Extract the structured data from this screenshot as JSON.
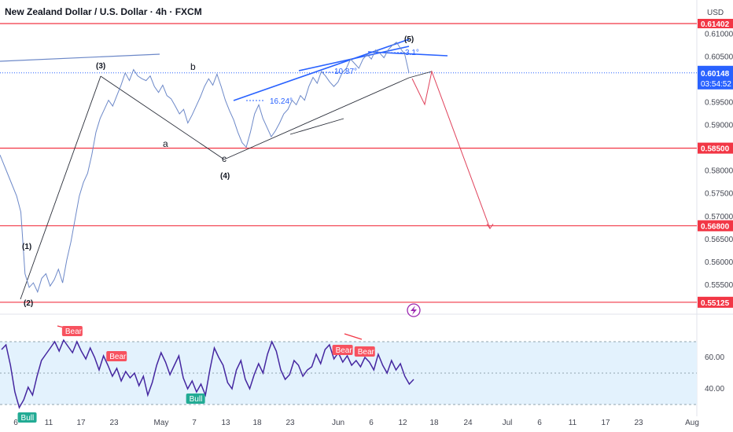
{
  "header": {
    "title": "New Zealand Dollar / U.S. Dollar · 4h · FXCM",
    "currency": "USD"
  },
  "colors": {
    "price": "#6c88c8",
    "trend_blue": "#2962ff",
    "trend_black": "#2a2e39",
    "level_red": "#f23645",
    "projection_red": "#e0425b",
    "rsi_band": "#e3f2fd",
    "rsi_line": "#4527a0",
    "bear_badge": "#f7525f",
    "bull_badge": "#22ab94",
    "current_price_tag": "#2962ff"
  },
  "chart_data": [
    {
      "type": "line",
      "title": "",
      "series": [
        {
          "values": [
            [
              0,
              0.5835
            ],
            [
              2,
              0.579
            ],
            [
              4,
              0.5745
            ],
            [
              5,
              0.571
            ],
            [
              6,
              0.5575
            ],
            [
              7,
              0.5545
            ],
            [
              8,
              0.5555
            ],
            [
              9,
              0.5535
            ],
            [
              10,
              0.5565
            ],
            [
              11,
              0.5575
            ],
            [
              12,
              0.5548
            ],
            [
              13,
              0.5562
            ],
            [
              14,
              0.5585
            ],
            [
              15,
              0.5555
            ],
            [
              16,
              0.5605
            ],
            [
              17,
              0.5645
            ],
            [
              18,
              0.5695
            ],
            [
              19,
              0.5745
            ],
            [
              20,
              0.5775
            ],
            [
              21,
              0.5795
            ],
            [
              22,
              0.5835
            ],
            [
              23,
              0.5885
            ],
            [
              24,
              0.5915
            ],
            [
              25,
              0.5935
            ],
            [
              26,
              0.5955
            ],
            [
              27,
              0.5942
            ],
            [
              28,
              0.5965
            ],
            [
              29,
              0.5988
            ],
            [
              30,
              0.6015
            ],
            [
              31,
              0.5998
            ],
            [
              32,
              0.6022
            ],
            [
              33,
              0.6008
            ],
            [
              34,
              0.6002
            ],
            [
              35,
              0.5998
            ],
            [
              36,
              0.6008
            ],
            [
              37,
              0.5985
            ],
            [
              38,
              0.5972
            ],
            [
              39,
              0.5988
            ],
            [
              40,
              0.5965
            ],
            [
              41,
              0.5958
            ],
            [
              42,
              0.5942
            ],
            [
              43,
              0.5925
            ],
            [
              44,
              0.5935
            ],
            [
              45,
              0.5905
            ],
            [
              46,
              0.5922
            ],
            [
              47,
              0.5942
            ],
            [
              48,
              0.5962
            ],
            [
              49,
              0.5985
            ],
            [
              50,
              0.6002
            ],
            [
              51,
              0.5988
            ],
            [
              52,
              0.6012
            ],
            [
              53,
              0.5985
            ],
            [
              54,
              0.5955
            ],
            [
              55,
              0.5932
            ],
            [
              56,
              0.5912
            ],
            [
              57,
              0.5885
            ],
            [
              58,
              0.5862
            ],
            [
              59,
              0.5852
            ],
            [
              60,
              0.5885
            ],
            [
              61,
              0.5925
            ],
            [
              62,
              0.5945
            ],
            [
              63,
              0.5915
            ],
            [
              64,
              0.5895
            ],
            [
              65,
              0.5875
            ],
            [
              66,
              0.5888
            ],
            [
              67,
              0.5905
            ],
            [
              68,
              0.5925
            ],
            [
              69,
              0.5935
            ],
            [
              70,
              0.5955
            ],
            [
              71,
              0.5945
            ],
            [
              72,
              0.5965
            ],
            [
              73,
              0.5955
            ],
            [
              74,
              0.5985
            ],
            [
              75,
              0.6005
            ],
            [
              76,
              0.5992
            ],
            [
              77,
              0.6018
            ],
            [
              78,
              0.6008
            ],
            [
              79,
              0.5995
            ],
            [
              80,
              0.5985
            ],
            [
              81,
              0.5995
            ],
            [
              82,
              0.6015
            ],
            [
              83,
              0.6025
            ],
            [
              84,
              0.6045
            ],
            [
              85,
              0.6035
            ],
            [
              86,
              0.6025
            ],
            [
              87,
              0.6045
            ],
            [
              88,
              0.6055
            ],
            [
              89,
              0.6045
            ],
            [
              90,
              0.6065
            ],
            [
              91,
              0.6058
            ],
            [
              92,
              0.6048
            ],
            [
              93,
              0.6065
            ],
            [
              94,
              0.6075
            ],
            [
              95,
              0.6082
            ],
            [
              96,
              0.6068
            ],
            [
              97,
              0.6055
            ],
            [
              98,
              0.6015
            ]
          ]
        }
      ],
      "xlabel": "",
      "ylabel": "",
      "xticks": [
        "6",
        "11",
        "17",
        "23",
        "May",
        "7",
        "13",
        "18",
        "23",
        "Jun",
        "6",
        "12",
        "18",
        "24",
        "Jul",
        "6",
        "11",
        "17",
        "23",
        "Aug"
      ],
      "yticks": [
        "0.61000",
        "0.60500",
        "0.60000",
        "0.59500",
        "0.59000",
        "0.58500",
        "0.58000",
        "0.57500",
        "0.57000",
        "0.56500",
        "0.56000",
        "0.55500"
      ],
      "ylim": [
        0.5495,
        0.614
      ],
      "levels": [
        {
          "label": "0.58500",
          "value": 0.585
        },
        {
          "label": "0.56800",
          "value": 0.568
        },
        {
          "label": "0.55125",
          "value": 0.55125
        }
      ],
      "current_price": {
        "label": "0.60148",
        "countdown": "03:54:52",
        "value": 0.60148
      },
      "top_level_label": "0.61402",
      "wave_labels": [
        "(1)",
        "(2)",
        "(3)",
        "a",
        "b",
        "c",
        "(4)",
        "(5)"
      ],
      "annotations": [
        "16.24°",
        "10.87°",
        "3.1°"
      ]
    },
    {
      "type": "line",
      "title": "",
      "yticks": [
        "60.00",
        "40.00"
      ],
      "ylim": [
        25,
        85
      ],
      "band": [
        30,
        70
      ],
      "midline": 50,
      "series": [
        {
          "values": [
            [
              0,
              65
            ],
            [
              1,
              68
            ],
            [
              2,
              55
            ],
            [
              3,
              38
            ],
            [
              4,
              28
            ],
            [
              5,
              33
            ],
            [
              6,
              41
            ],
            [
              7,
              36
            ],
            [
              8,
              48
            ],
            [
              9,
              58
            ],
            [
              10,
              62
            ],
            [
              11,
              66
            ],
            [
              12,
              70
            ],
            [
              13,
              64
            ],
            [
              14,
              71
            ],
            [
              15,
              67
            ],
            [
              16,
              63
            ],
            [
              17,
              70
            ],
            [
              18,
              64
            ],
            [
              19,
              59
            ],
            [
              20,
              66
            ],
            [
              21,
              60
            ],
            [
              22,
              52
            ],
            [
              23,
              61
            ],
            [
              24,
              55
            ],
            [
              25,
              48
            ],
            [
              26,
              53
            ],
            [
              27,
              45
            ],
            [
              28,
              51
            ],
            [
              29,
              47
            ],
            [
              30,
              50
            ],
            [
              31,
              42
            ],
            [
              32,
              48
            ],
            [
              33,
              36
            ],
            [
              34,
              44
            ],
            [
              35,
              55
            ],
            [
              36,
              63
            ],
            [
              37,
              57
            ],
            [
              38,
              49
            ],
            [
              39,
              55
            ],
            [
              40,
              61
            ],
            [
              41,
              47
            ],
            [
              42,
              40
            ],
            [
              43,
              45
            ],
            [
              44,
              38
            ],
            [
              45,
              43
            ],
            [
              46,
              36
            ],
            [
              47,
              52
            ],
            [
              48,
              66
            ],
            [
              49,
              60
            ],
            [
              50,
              55
            ],
            [
              51,
              44
            ],
            [
              52,
              40
            ],
            [
              53,
              52
            ],
            [
              54,
              58
            ],
            [
              55,
              46
            ],
            [
              56,
              40
            ],
            [
              57,
              49
            ],
            [
              58,
              56
            ],
            [
              59,
              50
            ],
            [
              60,
              62
            ],
            [
              61,
              70
            ],
            [
              62,
              64
            ],
            [
              63,
              52
            ],
            [
              64,
              46
            ],
            [
              65,
              49
            ],
            [
              66,
              58
            ],
            [
              67,
              55
            ],
            [
              68,
              48
            ],
            [
              69,
              52
            ],
            [
              70,
              54
            ],
            [
              71,
              62
            ],
            [
              72,
              56
            ],
            [
              73,
              65
            ],
            [
              74,
              68
            ],
            [
              75,
              59
            ],
            [
              76,
              63
            ],
            [
              77,
              57
            ],
            [
              78,
              61
            ],
            [
              79,
              55
            ],
            [
              80,
              58
            ],
            [
              81,
              54
            ],
            [
              82,
              60
            ],
            [
              83,
              57
            ],
            [
              84,
              52
            ],
            [
              85,
              62
            ],
            [
              86,
              55
            ],
            [
              87,
              50
            ],
            [
              88,
              58
            ],
            [
              89,
              52
            ],
            [
              90,
              56
            ],
            [
              91,
              48
            ],
            [
              92,
              43
            ],
            [
              93,
              46
            ]
          ]
        }
      ],
      "signals": [
        {
          "label": "Bull",
          "x": 4
        },
        {
          "label": "Bear",
          "x": 14
        },
        {
          "label": "Bear",
          "x": 24
        },
        {
          "label": "Bull",
          "x": 42
        },
        {
          "label": "Bear",
          "x": 75
        },
        {
          "label": "Bear",
          "x": 80
        }
      ]
    }
  ]
}
